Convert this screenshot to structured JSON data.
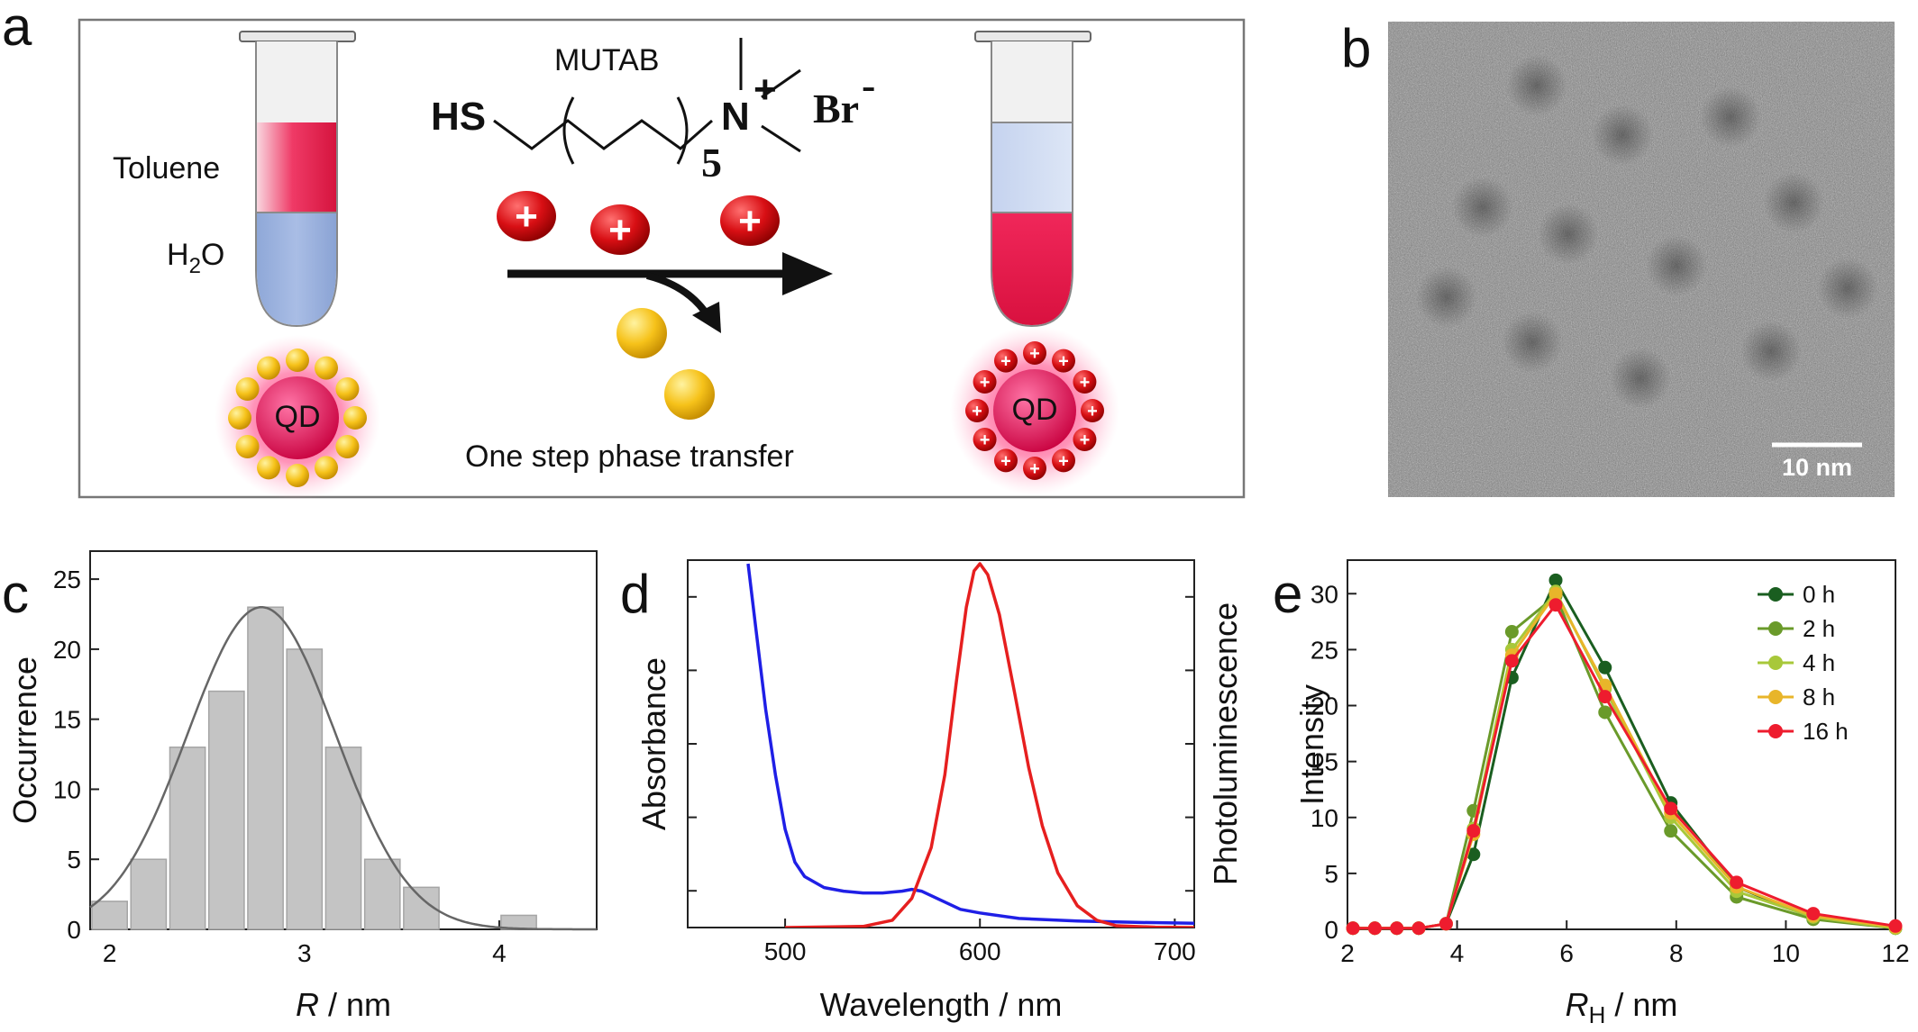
{
  "panels": {
    "a": {
      "letter": "a",
      "ligand_name": "MUTAB",
      "thiol_group": "HS",
      "repeat_subscript": "5",
      "ammonium": "N",
      "ammonium_charge": "+",
      "counterion": "Br",
      "counterion_charge": "-",
      "toluene_label": "Toluene",
      "water_label_main": "H",
      "water_label_sub": "2",
      "water_label_end": "O",
      "qd_label_left": "QD",
      "qd_label_right": "QD",
      "plus_sign": "+",
      "process_caption": "One step phase transfer"
    },
    "b": {
      "letter": "b",
      "scale_bar_label": "10 nm"
    }
  },
  "chart_data": [
    {
      "panel": "c",
      "type": "bar",
      "letter": "c",
      "xlabel_italic": "R",
      "xlabel_unit": " / nm",
      "ylabel": "Occurrence",
      "xlim": [
        1.9,
        4.5
      ],
      "ylim": [
        0,
        27
      ],
      "xticks": [
        2,
        3,
        4
      ],
      "yticks": [
        0,
        5,
        10,
        15,
        20,
        25
      ],
      "bin_width": 0.2,
      "x": [
        1.9,
        2.1,
        2.3,
        2.5,
        2.7,
        2.9,
        3.1,
        3.3,
        3.5,
        4.0
      ],
      "values": [
        2,
        5,
        13,
        17,
        23,
        20,
        13,
        5,
        3,
        1
      ],
      "fit": {
        "type": "gaussian",
        "amplitude": 23,
        "mean": 2.78,
        "sigma": 0.38
      }
    },
    {
      "panel": "d",
      "type": "line",
      "letter": "d",
      "xlabel": "Wavelength / nm",
      "ylabel_left": "Absorbance",
      "ylabel_right": "Photoluminescence",
      "xlim": [
        450,
        710
      ],
      "xticks": [
        500,
        600,
        700
      ],
      "series": [
        {
          "color": "#1f1fe6",
          "x": [
            481,
            485,
            490,
            495,
            500,
            505,
            510,
            520,
            530,
            540,
            550,
            560,
            565,
            570,
            580,
            590,
            600,
            620,
            650,
            680,
            710
          ],
          "y": [
            1.0,
            0.82,
            0.6,
            0.42,
            0.27,
            0.18,
            0.14,
            0.11,
            0.1,
            0.095,
            0.095,
            0.1,
            0.105,
            0.1,
            0.075,
            0.05,
            0.04,
            0.025,
            0.018,
            0.014,
            0.012
          ]
        },
        {
          "color": "#e61f1f",
          "x": [
            500,
            540,
            555,
            565,
            575,
            582,
            588,
            593,
            597,
            600,
            604,
            610,
            618,
            625,
            632,
            640,
            650,
            660,
            670,
            690,
            710
          ],
          "y": [
            0,
            0.003,
            0.02,
            0.08,
            0.22,
            0.42,
            0.68,
            0.88,
            0.98,
            1.0,
            0.97,
            0.86,
            0.64,
            0.44,
            0.28,
            0.15,
            0.06,
            0.02,
            0.005,
            0.001,
            0
          ]
        }
      ]
    },
    {
      "panel": "e",
      "type": "line",
      "letter": "e",
      "xlabel_italic": "R",
      "xlabel_sub": "H",
      "xlabel_unit": " / nm",
      "ylabel": "Intensity",
      "xlim": [
        2,
        12
      ],
      "ylim": [
        0,
        33
      ],
      "xticks": [
        2,
        4,
        6,
        8,
        10,
        12
      ],
      "yticks": [
        0,
        5,
        10,
        15,
        20,
        25,
        30
      ],
      "x": [
        2.1,
        2.5,
        2.9,
        3.3,
        3.8,
        4.3,
        5.0,
        5.8,
        6.7,
        7.9,
        9.1,
        10.5,
        12.0
      ],
      "legend_position": "top-right",
      "series": [
        {
          "name": "0 h",
          "color": "#1a5e20",
          "values": [
            0.1,
            0.1,
            0.1,
            0.1,
            0.5,
            6.7,
            22.5,
            31.2,
            23.4,
            11.3,
            3.8,
            1.0,
            0.1
          ]
        },
        {
          "name": "2 h",
          "color": "#6a9a2a",
          "values": [
            0.1,
            0.1,
            0.1,
            0.1,
            0.5,
            10.6,
            26.6,
            29.8,
            19.4,
            8.8,
            2.9,
            0.9,
            0.1
          ]
        },
        {
          "name": "4 h",
          "color": "#a8c83a",
          "values": [
            0.1,
            0.1,
            0.1,
            0.1,
            0.5,
            9.0,
            25.0,
            30.2,
            21.5,
            10.0,
            3.4,
            1.1,
            0.1
          ]
        },
        {
          "name": "8 h",
          "color": "#e8b52a",
          "values": [
            0.1,
            0.1,
            0.1,
            0.1,
            0.5,
            8.5,
            24.5,
            30.0,
            21.8,
            10.4,
            3.8,
            1.2,
            0.2
          ]
        },
        {
          "name": "16 h",
          "color": "#ee1c2e",
          "values": [
            0.1,
            0.1,
            0.1,
            0.1,
            0.5,
            8.8,
            24.0,
            29.0,
            20.8,
            10.8,
            4.2,
            1.4,
            0.3
          ]
        }
      ]
    }
  ]
}
